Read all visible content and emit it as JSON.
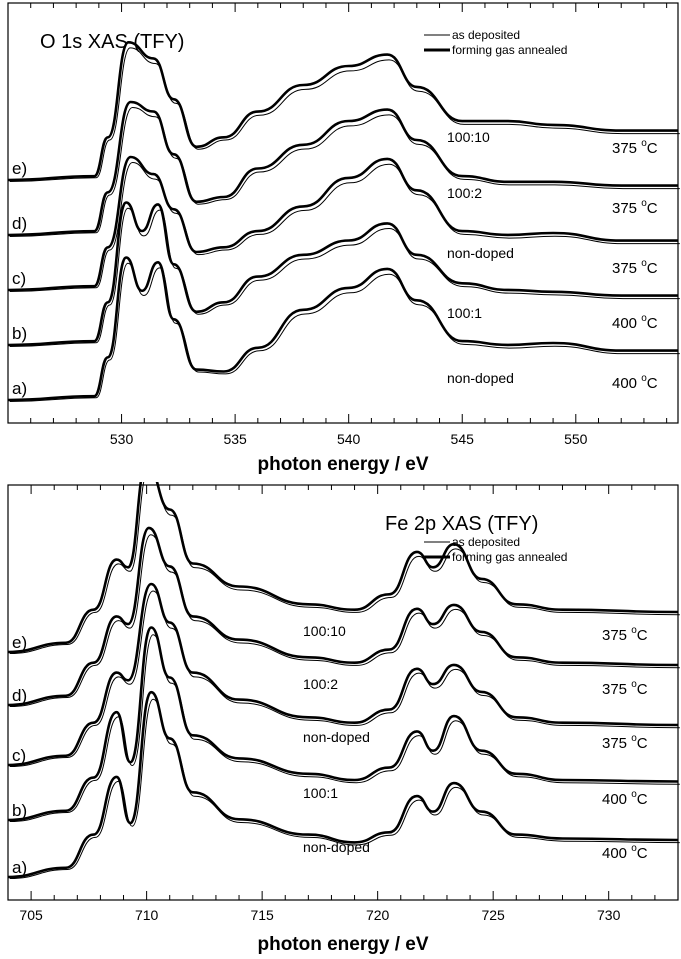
{
  "chart_data": [
    {
      "type": "line",
      "title": "O 1s   XAS (TFY)",
      "xlabel": "photon energy / eV",
      "ylabel": "",
      "xlim": [
        525,
        554.5
      ],
      "xticks": [
        530,
        535,
        540,
        545,
        550
      ],
      "grid": false,
      "legend": {
        "placement": "top-right",
        "entries": [
          {
            "name": "as deposited",
            "style": "thin"
          },
          {
            "name": "forming gas annealed",
            "style": "thick"
          }
        ]
      },
      "traces": [
        {
          "label": "a)",
          "sample": "non-doped",
          "temp_value": "400",
          "temp_unit": "C"
        },
        {
          "label": "b)",
          "sample": "100:1",
          "temp_value": "400",
          "temp_unit": "C"
        },
        {
          "label": "c)",
          "sample": "non-doped",
          "temp_value": "375",
          "temp_unit": "C"
        },
        {
          "label": "d)",
          "sample": "100:2",
          "temp_value": "375",
          "temp_unit": "C"
        },
        {
          "label": "e)",
          "sample": "100:10",
          "temp_value": "375",
          "temp_unit": "C"
        }
      ],
      "shape_points": [
        [
          [
            525,
            0
          ],
          [
            528.8,
            0.04
          ],
          [
            529.4,
            0.45
          ],
          [
            530.2,
            1.5
          ],
          [
            530.9,
            1.15
          ],
          [
            531.6,
            1.45
          ],
          [
            532.3,
            0.85
          ],
          [
            533.3,
            0.32
          ],
          [
            534.5,
            0.3
          ],
          [
            536,
            0.55
          ],
          [
            538,
            0.95
          ],
          [
            540,
            1.18
          ],
          [
            541.7,
            1.38
          ],
          [
            543,
            1.05
          ],
          [
            545,
            0.62
          ],
          [
            547,
            0.58
          ],
          [
            549,
            0.6
          ],
          [
            552,
            0.52
          ],
          [
            554.5,
            0.52
          ]
        ],
        [
          [
            525,
            0
          ],
          [
            528.8,
            0.04
          ],
          [
            529.4,
            0.45
          ],
          [
            530.2,
            1.5
          ],
          [
            530.9,
            1.2
          ],
          [
            531.6,
            1.48
          ],
          [
            532.3,
            0.85
          ],
          [
            533.3,
            0.35
          ],
          [
            534.5,
            0.45
          ],
          [
            536,
            0.72
          ],
          [
            538,
            0.95
          ],
          [
            540,
            1.1
          ],
          [
            541.7,
            1.28
          ],
          [
            543,
            0.95
          ],
          [
            545,
            0.65
          ],
          [
            547,
            0.58
          ],
          [
            549,
            0.56
          ],
          [
            552,
            0.52
          ],
          [
            554.5,
            0.52
          ]
        ],
        [
          [
            525,
            0
          ],
          [
            528.8,
            0.04
          ],
          [
            529.4,
            0.45
          ],
          [
            530.4,
            1.4
          ],
          [
            531.4,
            1.22
          ],
          [
            532.3,
            0.85
          ],
          [
            533.3,
            0.4
          ],
          [
            534.5,
            0.45
          ],
          [
            536,
            0.62
          ],
          [
            538,
            0.88
          ],
          [
            540,
            1.18
          ],
          [
            541.7,
            1.38
          ],
          [
            543,
            1.05
          ],
          [
            545,
            0.62
          ],
          [
            547,
            0.58
          ],
          [
            549,
            0.6
          ],
          [
            552,
            0.52
          ],
          [
            554.5,
            0.52
          ]
        ],
        [
          [
            525,
            0
          ],
          [
            528.8,
            0.04
          ],
          [
            529.4,
            0.45
          ],
          [
            530.4,
            1.4
          ],
          [
            531.4,
            1.3
          ],
          [
            532.3,
            0.85
          ],
          [
            533.3,
            0.35
          ],
          [
            534.5,
            0.4
          ],
          [
            536,
            0.7
          ],
          [
            538,
            0.95
          ],
          [
            540,
            1.2
          ],
          [
            541.7,
            1.32
          ],
          [
            543,
            1.0
          ],
          [
            545,
            0.62
          ],
          [
            547,
            0.56
          ],
          [
            549,
            0.56
          ],
          [
            552,
            0.52
          ],
          [
            554.5,
            0.52
          ]
        ],
        [
          [
            525,
            0
          ],
          [
            528.8,
            0.04
          ],
          [
            529.4,
            0.45
          ],
          [
            530.3,
            1.45
          ],
          [
            531.4,
            1.28
          ],
          [
            532.3,
            0.85
          ],
          [
            533.3,
            0.35
          ],
          [
            534.5,
            0.45
          ],
          [
            536,
            0.72
          ],
          [
            538,
            1.0
          ],
          [
            540,
            1.2
          ],
          [
            541.7,
            1.32
          ],
          [
            543,
            0.98
          ],
          [
            545,
            0.62
          ],
          [
            547,
            0.62
          ],
          [
            549,
            0.58
          ],
          [
            552,
            0.52
          ],
          [
            554.5,
            0.52
          ]
        ]
      ]
    },
    {
      "type": "line",
      "title": "Fe 2p  XAS (TFY)",
      "xlabel": "photon energy / eV",
      "ylabel": "",
      "xlim": [
        704,
        733
      ],
      "xticks": [
        705,
        710,
        715,
        720,
        725,
        730
      ],
      "grid": false,
      "legend": {
        "placement": "top-right",
        "entries": [
          {
            "name": "as deposited",
            "style": "thin"
          },
          {
            "name": "forming gas annealed",
            "style": "thick"
          }
        ]
      },
      "traces": [
        {
          "label": "a)",
          "sample": "non-doped",
          "temp_value": "400",
          "temp_unit": "C"
        },
        {
          "label": "b)",
          "sample": "100:1",
          "temp_value": "400",
          "temp_unit": "C"
        },
        {
          "label": "c)",
          "sample": "non-doped",
          "temp_value": "375",
          "temp_unit": "C"
        },
        {
          "label": "d)",
          "sample": "100:2",
          "temp_value": "375",
          "temp_unit": "C"
        },
        {
          "label": "e)",
          "sample": "100:10",
          "temp_value": "375",
          "temp_unit": "C"
        }
      ],
      "shape_points": [
        [
          [
            704,
            0
          ],
          [
            706.5,
            0.12
          ],
          [
            707.7,
            0.55
          ],
          [
            708.7,
            1.3
          ],
          [
            709.3,
            0.7
          ],
          [
            710.2,
            2.4
          ],
          [
            711,
            1.8
          ],
          [
            712,
            1.1
          ],
          [
            714,
            0.75
          ],
          [
            717,
            0.55
          ],
          [
            719,
            0.45
          ],
          [
            720.5,
            0.58
          ],
          [
            721.7,
            1.05
          ],
          [
            722.4,
            0.85
          ],
          [
            723.3,
            1.22
          ],
          [
            724.5,
            0.85
          ],
          [
            726,
            0.55
          ],
          [
            728,
            0.5
          ],
          [
            733,
            0.48
          ]
        ],
        [
          [
            704,
            0
          ],
          [
            706.5,
            0.12
          ],
          [
            707.7,
            0.55
          ],
          [
            708.7,
            1.4
          ],
          [
            709.3,
            0.75
          ],
          [
            710.2,
            2.5
          ],
          [
            711,
            1.85
          ],
          [
            712,
            1.1
          ],
          [
            714,
            0.8
          ],
          [
            717,
            0.6
          ],
          [
            719,
            0.52
          ],
          [
            720.5,
            0.68
          ],
          [
            721.7,
            1.15
          ],
          [
            722.4,
            0.9
          ],
          [
            723.3,
            1.35
          ],
          [
            724.5,
            0.9
          ],
          [
            726,
            0.6
          ],
          [
            728,
            0.52
          ],
          [
            733,
            0.5
          ]
        ],
        [
          [
            704,
            0
          ],
          [
            706.5,
            0.12
          ],
          [
            707.7,
            0.55
          ],
          [
            708.7,
            1.2
          ],
          [
            709.2,
            1.1
          ],
          [
            710.2,
            2.35
          ],
          [
            711,
            1.85
          ],
          [
            712,
            1.2
          ],
          [
            714,
            0.85
          ],
          [
            717,
            0.62
          ],
          [
            719,
            0.55
          ],
          [
            720.5,
            0.72
          ],
          [
            721.7,
            1.25
          ],
          [
            722.4,
            1.05
          ],
          [
            723.3,
            1.3
          ],
          [
            724.5,
            0.95
          ],
          [
            726,
            0.62
          ],
          [
            728,
            0.55
          ],
          [
            733,
            0.52
          ]
        ],
        [
          [
            704,
            0
          ],
          [
            706.5,
            0.12
          ],
          [
            707.7,
            0.55
          ],
          [
            708.7,
            1.15
          ],
          [
            709.2,
            1.05
          ],
          [
            710.1,
            2.3
          ],
          [
            711,
            1.8
          ],
          [
            712,
            1.15
          ],
          [
            714,
            0.85
          ],
          [
            717,
            0.62
          ],
          [
            719,
            0.55
          ],
          [
            720.5,
            0.72
          ],
          [
            721.7,
            1.25
          ],
          [
            722.4,
            1.05
          ],
          [
            723.3,
            1.3
          ],
          [
            724.5,
            0.95
          ],
          [
            726,
            0.62
          ],
          [
            728,
            0.55
          ],
          [
            733,
            0.52
          ]
        ],
        [
          [
            704,
            0
          ],
          [
            706.5,
            0.12
          ],
          [
            707.7,
            0.55
          ],
          [
            708.7,
            1.2
          ],
          [
            709.2,
            1.1
          ],
          [
            710.0,
            2.45
          ],
          [
            711,
            1.85
          ],
          [
            712,
            1.15
          ],
          [
            714,
            0.85
          ],
          [
            717,
            0.62
          ],
          [
            719,
            0.55
          ],
          [
            720.5,
            0.75
          ],
          [
            721.7,
            1.3
          ],
          [
            722.4,
            1.1
          ],
          [
            723.3,
            1.4
          ],
          [
            724.5,
            0.95
          ],
          [
            726,
            0.62
          ],
          [
            728,
            0.55
          ],
          [
            733,
            0.52
          ]
        ]
      ]
    }
  ]
}
